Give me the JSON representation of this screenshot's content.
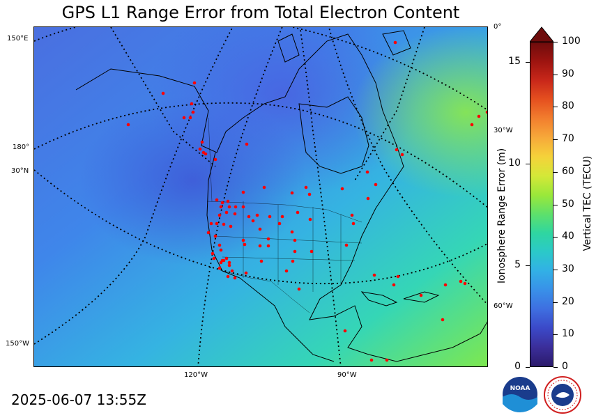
{
  "title": "GPS L1 Range Error from Total Electron Content",
  "timestamp": "2025-06-07 13:55Z",
  "map": {
    "edge_labels": {
      "lat_150e": "150°E",
      "lat_180": "180°",
      "lat_30n": "30°N",
      "lat_150w": "150°W",
      "right_0": "0°",
      "right_30w": "30°W",
      "right_60w": "60°W",
      "bottom_120w": "120°W",
      "bottom_90w": "90°W"
    },
    "station_color": "#ff0000"
  },
  "colorbar": {
    "right_label": "Vertical TEC (TECU)",
    "left_label": "Ionosphere Range Error (m)",
    "tec_ticks": [
      "0",
      "10",
      "20",
      "30",
      "40",
      "50",
      "60",
      "70",
      "80",
      "90",
      "100"
    ],
    "range_ticks": [
      "0",
      "5",
      "10",
      "15"
    ],
    "colors": [
      "#2b1a6b",
      "#3b2e9a",
      "#3b49c8",
      "#3e6ee0",
      "#3990e8",
      "#32b0e6",
      "#2bc9c9",
      "#2fd6a0",
      "#5fe06a",
      "#9ae83a",
      "#d4e838",
      "#f5d23a",
      "#f7a93a",
      "#f27e2e",
      "#e5501f",
      "#c9281a",
      "#9e1410",
      "#6e0c0c"
    ]
  },
  "logos": {
    "noaa": "NOAA",
    "nws": "NATIONAL WEATHER SERVICE"
  }
}
